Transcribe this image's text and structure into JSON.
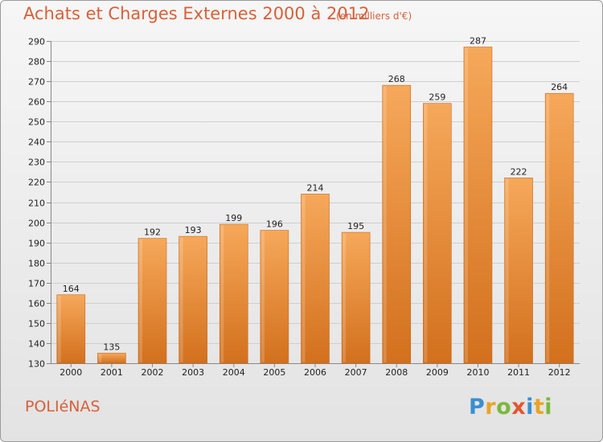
{
  "header": {
    "title": "Achats et Charges Externes 2000 à 2012",
    "subtitle": "(en milliers d'€)"
  },
  "footer": {
    "commune": "POLIéNAS",
    "logo": {
      "p": "P",
      "r": "r",
      "o": "o",
      "x": "x",
      "i1": "i",
      "t": "t",
      "i2": "i"
    }
  },
  "chart_data": {
    "type": "bar",
    "title": "Achats et Charges Externes 2000 à 2012",
    "xlabel": "",
    "ylabel": "",
    "categories": [
      "2000",
      "2001",
      "2002",
      "2003",
      "2004",
      "2005",
      "2006",
      "2007",
      "2008",
      "2009",
      "2010",
      "2011",
      "2012"
    ],
    "values": [
      164,
      135,
      192,
      193,
      199,
      196,
      214,
      195,
      268,
      259,
      287,
      222,
      264
    ],
    "ylim": [
      130,
      290
    ],
    "yticks": [
      130,
      140,
      150,
      160,
      170,
      180,
      190,
      200,
      210,
      220,
      230,
      240,
      250,
      260,
      270,
      280,
      290
    ],
    "grid": true,
    "bar_color_top": "#f6a85a",
    "bar_color_bottom": "#d2701d"
  }
}
